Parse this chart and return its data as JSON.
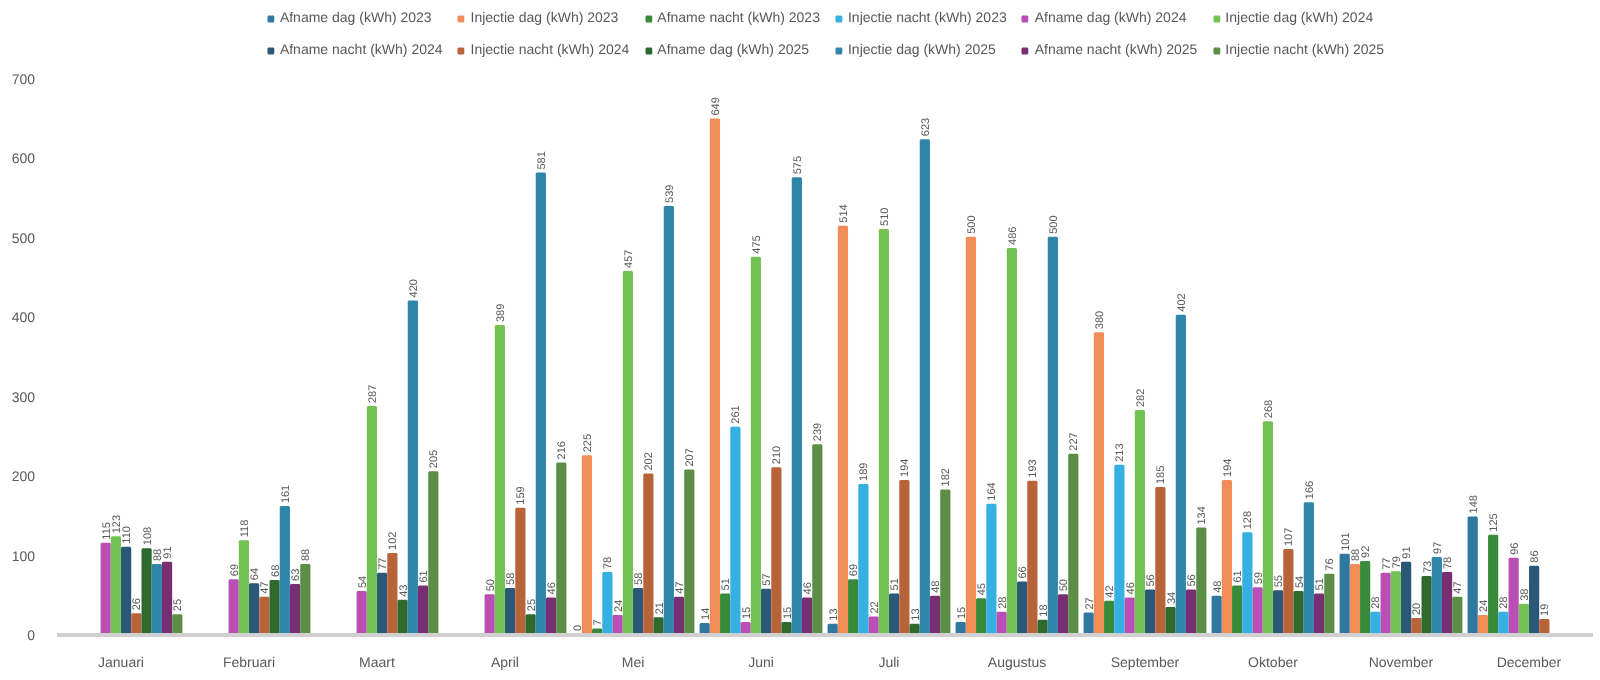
{
  "chart_data": {
    "type": "bar",
    "categories": [
      "Januari",
      "Februari",
      "Maart",
      "April",
      "Mei",
      "Juni",
      "Juli",
      "Augustus",
      "September",
      "Oktober",
      "November",
      "December"
    ],
    "ylim": [
      0,
      700
    ],
    "yticks": [
      0,
      100,
      200,
      300,
      400,
      500,
      600,
      700
    ],
    "grid": false,
    "legend": "top",
    "data_labels": true,
    "series": [
      {
        "name": "Afname dag (kWh) 2023",
        "color": "#2f78a0",
        "values": [
          null,
          null,
          null,
          null,
          0,
          14,
          13,
          15,
          27,
          48,
          101,
          148
        ]
      },
      {
        "name": "Injectie dag (kWh) 2023",
        "color": "#f28c58",
        "values": [
          null,
          null,
          null,
          null,
          225,
          649,
          514,
          500,
          380,
          194,
          88,
          24
        ]
      },
      {
        "name": "Afname nacht (kWh) 2023",
        "color": "#3a8a3c",
        "values": [
          null,
          null,
          null,
          null,
          7,
          51,
          69,
          45,
          42,
          61,
          92,
          125
        ]
      },
      {
        "name": "Injectie nacht (kWh) 2023",
        "color": "#35b0e2",
        "values": [
          null,
          null,
          null,
          null,
          78,
          261,
          189,
          164,
          213,
          128,
          28,
          28
        ]
      },
      {
        "name": "Afname dag (kWh) 2024",
        "color": "#b94fb5",
        "values": [
          115,
          69,
          54,
          50,
          24,
          15,
          22,
          28,
          46,
          59,
          77,
          96
        ]
      },
      {
        "name": "Injectie dag (kWh) 2024",
        "color": "#72c254",
        "values": [
          123,
          118,
          287,
          389,
          457,
          475,
          510,
          486,
          282,
          268,
          79,
          38
        ]
      },
      {
        "name": "Afname nacht (kWh) 2024",
        "color": "#2b5876",
        "values": [
          110,
          64,
          77,
          58,
          58,
          57,
          51,
          66,
          56,
          55,
          91,
          86
        ]
      },
      {
        "name": "Injectie nacht (kWh) 2024",
        "color": "#b8633a",
        "values": [
          26,
          47,
          102,
          159,
          202,
          210,
          194,
          193,
          185,
          107,
          20,
          19
        ]
      },
      {
        "name": "Afname dag (kWh) 2025",
        "color": "#2c6a30",
        "values": [
          108,
          68,
          43,
          25,
          21,
          15,
          13,
          18,
          34,
          54,
          73,
          null
        ]
      },
      {
        "name": "Injectie dag (kWh) 2025",
        "color": "#2e86aa",
        "values": [
          88,
          161,
          420,
          581,
          539,
          575,
          623,
          500,
          402,
          166,
          97,
          null
        ]
      },
      {
        "name": "Afname nacht (kWh) 2025",
        "color": "#7a2e72",
        "values": [
          91,
          63,
          61,
          46,
          47,
          46,
          48,
          50,
          56,
          51,
          78,
          null
        ]
      },
      {
        "name": "Injectie nacht (kWh) 2025",
        "color": "#5a8f44",
        "values": [
          25,
          88,
          205,
          216,
          207,
          239,
          182,
          227,
          134,
          76,
          47,
          null
        ]
      }
    ]
  }
}
